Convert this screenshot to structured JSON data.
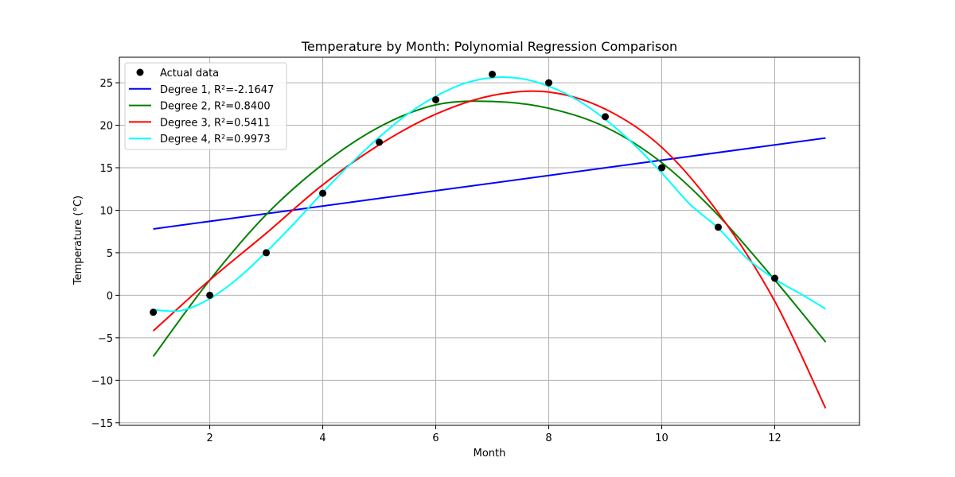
{
  "chart_data": {
    "type": "scatter",
    "title": "Temperature by Month: Polynomial Regression Comparison",
    "xlabel": "Month",
    "ylabel": "Temperature (°C)",
    "xlim": [
      0.4,
      13.5
    ],
    "ylim": [
      -15.3,
      28
    ],
    "xticks": [
      2,
      4,
      6,
      8,
      10,
      12
    ],
    "yticks": [
      -15,
      -10,
      -5,
      0,
      5,
      10,
      15,
      20,
      25
    ],
    "grid": true,
    "legend_position": "top-left",
    "scatter": {
      "name": "Actual data",
      "color": "#000000",
      "x": [
        1,
        2,
        3,
        4,
        5,
        6,
        7,
        8,
        9,
        10,
        11,
        12
      ],
      "y": [
        -2,
        0,
        5,
        12,
        18,
        23,
        26,
        25,
        21,
        15,
        8,
        2
      ]
    },
    "series": [
      {
        "name": "Degree 1, R²=-2.1647",
        "color": "#0000ff",
        "x": [
          1,
          12.9
        ],
        "y": [
          7.8,
          18.5
        ]
      },
      {
        "name": "Degree 2, R²=0.8400",
        "color": "#008000",
        "x": [
          1,
          2,
          3,
          4,
          5,
          6,
          7,
          8,
          9,
          10,
          11,
          12,
          12.9
        ],
        "y": [
          -7.2,
          1.8,
          9.5,
          15.4,
          19.8,
          22.4,
          22.8,
          22.0,
          19.8,
          15.6,
          9.4,
          1.8,
          -5.5
        ]
      },
      {
        "name": "Degree 3, R²=0.5411",
        "color": "#ff0000",
        "x": [
          1,
          2,
          3,
          4,
          5,
          6,
          7,
          8,
          9,
          10,
          11,
          12,
          12.9
        ],
        "y": [
          -4.2,
          1.8,
          7.3,
          13.0,
          17.7,
          21.3,
          23.5,
          23.9,
          21.9,
          17.4,
          9.7,
          -0.7,
          -13.3
        ]
      },
      {
        "name": "Degree 4, R²=0.9973",
        "color": "#00ffff",
        "x": [
          1,
          1.5,
          2,
          2.5,
          3,
          3.5,
          4,
          4.5,
          5,
          5.5,
          6,
          6.5,
          7,
          7.5,
          8,
          8.5,
          9,
          9.5,
          10,
          10.5,
          11,
          11.5,
          12,
          12.5,
          12.9
        ],
        "y": [
          -1.7,
          -1.8,
          -0.4,
          2.0,
          5.1,
          8.5,
          12.1,
          15.5,
          18.6,
          21.3,
          23.4,
          24.9,
          25.6,
          25.5,
          24.6,
          23.0,
          20.7,
          17.8,
          14.4,
          10.7,
          7.9,
          4.4,
          1.9,
          0.0,
          -1.6
        ]
      }
    ]
  }
}
